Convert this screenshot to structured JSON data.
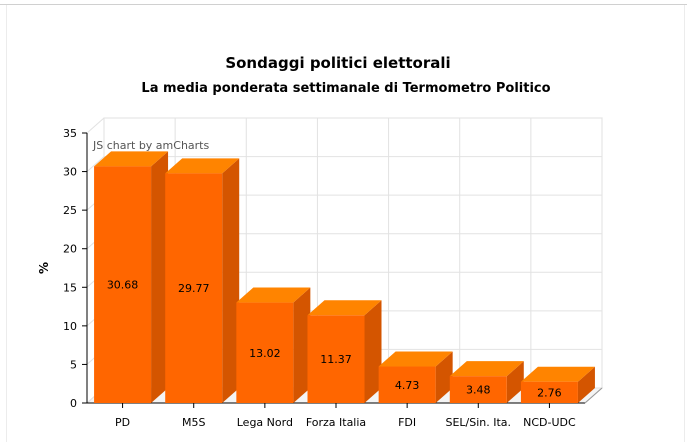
{
  "chart_data": {
    "type": "bar",
    "title": "Sondaggi politici elettorali",
    "subtitle": "La media ponderata settimanale di Termometro Politico",
    "xlabel": "",
    "ylabel": "%",
    "ylim": [
      0,
      35
    ],
    "yticks": [
      "0",
      "5",
      "10",
      "15",
      "20",
      "25",
      "30",
      "35"
    ],
    "categories": [
      "PD",
      "M5S",
      "Lega Nord",
      "Forza Italia",
      "FDI",
      "SEL/Sin. Ita.",
      "NCD-UDC"
    ],
    "values": [
      30.68,
      29.77,
      13.02,
      11.37,
      4.73,
      3.48,
      2.76
    ],
    "value_labels": [
      "30.68",
      "29.77",
      "13.02",
      "11.37",
      "4.73",
      "3.48",
      "2.76"
    ],
    "bar_color": "#ff6600",
    "grid": true,
    "style": "3d-column"
  },
  "credit": "JS chart by amCharts"
}
